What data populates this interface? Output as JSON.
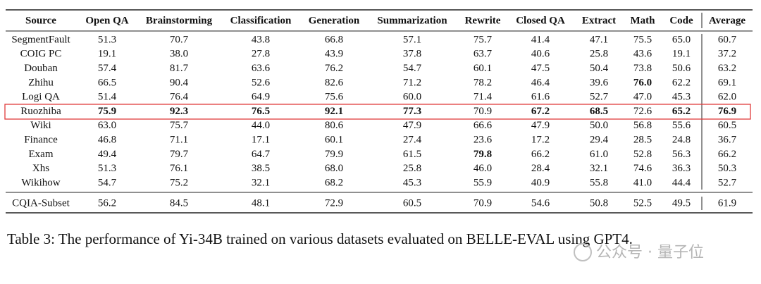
{
  "table": {
    "columns": [
      "Source",
      "Open QA",
      "Brainstorming",
      "Classification",
      "Generation",
      "Summarization",
      "Rewrite",
      "Closed QA",
      "Extract",
      "Math",
      "Code",
      "Average"
    ],
    "rows": [
      {
        "source": "SegmentFault",
        "cells": [
          "51.3",
          "70.7",
          "43.8",
          "66.8",
          "57.1",
          "75.7",
          "41.4",
          "47.1",
          "75.5",
          "65.0",
          "60.7"
        ]
      },
      {
        "source": "COIG PC",
        "cells": [
          "19.1",
          "38.0",
          "27.8",
          "43.9",
          "37.8",
          "63.7",
          "40.6",
          "25.8",
          "43.6",
          "19.1",
          "37.2"
        ]
      },
      {
        "source": "Douban",
        "cells": [
          "57.4",
          "81.7",
          "63.6",
          "76.2",
          "54.7",
          "60.1",
          "47.5",
          "50.4",
          "73.8",
          "50.6",
          "63.2"
        ]
      },
      {
        "source": "Zhihu",
        "cells": [
          "66.5",
          "90.4",
          "52.6",
          "82.6",
          "71.2",
          "78.2",
          "46.4",
          "39.6",
          "76.0",
          "62.2",
          "69.1"
        ]
      },
      {
        "source": "Logi QA",
        "cells": [
          "51.4",
          "76.4",
          "64.9",
          "75.6",
          "60.0",
          "71.4",
          "61.6",
          "52.7",
          "47.0",
          "45.3",
          "62.0"
        ]
      },
      {
        "source": "Ruozhiba",
        "cells": [
          "75.9",
          "92.3",
          "76.5",
          "92.1",
          "77.3",
          "70.9",
          "67.2",
          "68.5",
          "72.6",
          "65.2",
          "76.9"
        ]
      },
      {
        "source": "Wiki",
        "cells": [
          "63.0",
          "75.7",
          "44.0",
          "80.6",
          "47.9",
          "66.6",
          "47.9",
          "50.0",
          "56.8",
          "55.6",
          "60.5"
        ]
      },
      {
        "source": "Finance",
        "cells": [
          "46.8",
          "71.1",
          "17.1",
          "60.1",
          "27.4",
          "23.6",
          "17.2",
          "29.4",
          "28.5",
          "24.8",
          "36.7"
        ]
      },
      {
        "source": "Exam",
        "cells": [
          "49.4",
          "79.7",
          "64.7",
          "79.9",
          "61.5",
          "79.8",
          "66.2",
          "61.0",
          "52.8",
          "56.3",
          "66.2"
        ]
      },
      {
        "source": "Xhs",
        "cells": [
          "51.3",
          "76.1",
          "38.5",
          "68.0",
          "25.8",
          "46.0",
          "28.4",
          "32.1",
          "74.6",
          "36.3",
          "50.3"
        ]
      },
      {
        "source": "Wikihow",
        "cells": [
          "54.7",
          "75.2",
          "32.1",
          "68.2",
          "45.3",
          "55.9",
          "40.9",
          "55.8",
          "41.0",
          "44.4",
          "52.7"
        ]
      }
    ],
    "summary_row": {
      "source": "CQIA-Subset",
      "cells": [
        "56.2",
        "84.5",
        "48.1",
        "72.9",
        "60.5",
        "70.9",
        "54.6",
        "50.8",
        "52.5",
        "49.5",
        "61.9"
      ]
    },
    "highlight_row": 5,
    "bold": [
      [
        3,
        8
      ],
      [
        5,
        0
      ],
      [
        5,
        1
      ],
      [
        5,
        2
      ],
      [
        5,
        3
      ],
      [
        5,
        4
      ],
      [
        5,
        6
      ],
      [
        5,
        7
      ],
      [
        5,
        9
      ],
      [
        5,
        10
      ],
      [
        8,
        5
      ]
    ]
  },
  "caption": "Table 3: The performance of Yi-34B trained on various datasets evaluated on BELLE-EVAL using GPT4.",
  "watermark": "公众号 · 量子位"
}
